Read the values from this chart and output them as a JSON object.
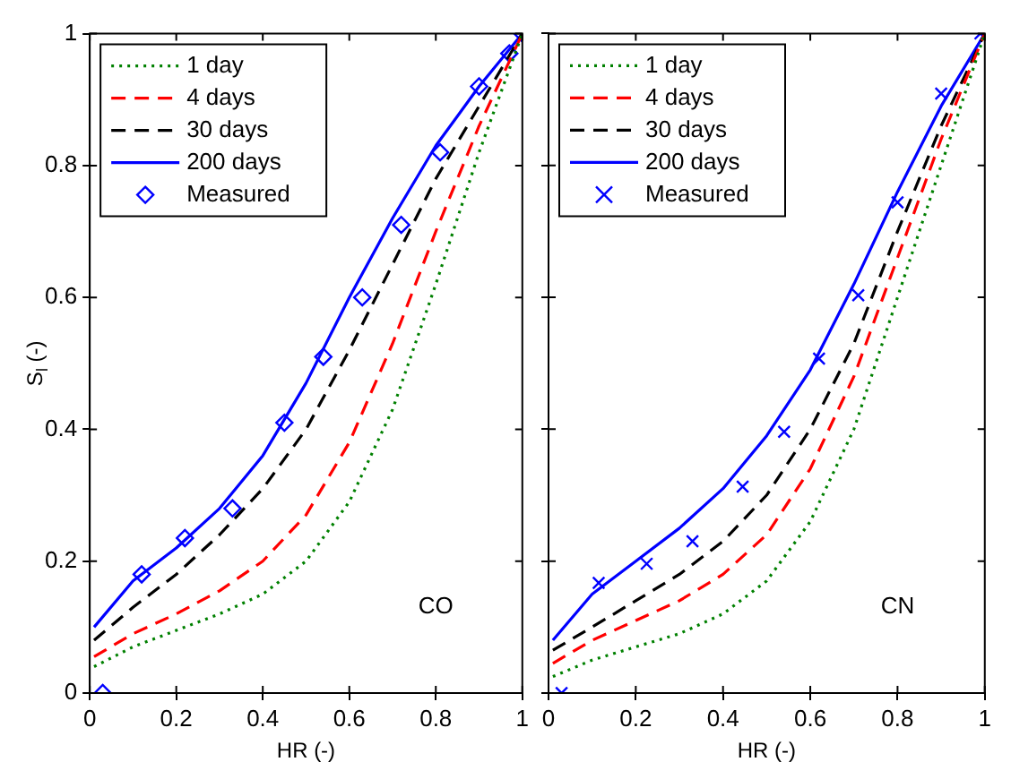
{
  "chart_data": [
    {
      "type": "line",
      "xlabel": "HR (-)",
      "ylabel": "S$_{l}$ (-)",
      "xlim": [
        0,
        1
      ],
      "ylim": [
        0,
        1
      ],
      "xticks": [
        0,
        0.2,
        0.4,
        0.6,
        0.8,
        1
      ],
      "yticks": [
        0,
        0.2,
        0.4,
        0.6,
        0.8,
        1
      ],
      "grid": false,
      "legend": "top left",
      "annotations": [
        "CO"
      ],
      "series": [
        {
          "name": "1 day",
          "type": "line",
          "color": "#008000",
          "line_style": "dotted",
          "marker": "none",
          "x": [
            0.01,
            0.1,
            0.2,
            0.3,
            0.4,
            0.5,
            0.6,
            0.7,
            0.8,
            0.9,
            1
          ],
          "values": [
            0.04,
            0.07,
            0.095,
            0.12,
            0.15,
            0.2,
            0.29,
            0.43,
            0.62,
            0.82,
            1
          ]
        },
        {
          "name": "4 days",
          "type": "line",
          "color": "#ff0000",
          "line_style": "dashed",
          "marker": "none",
          "x": [
            0.01,
            0.1,
            0.2,
            0.3,
            0.4,
            0.5,
            0.6,
            0.7,
            0.8,
            0.9,
            1
          ],
          "values": [
            0.055,
            0.09,
            0.12,
            0.155,
            0.2,
            0.27,
            0.38,
            0.53,
            0.7,
            0.86,
            1
          ]
        },
        {
          "name": "30 days",
          "type": "line",
          "color": "#000000",
          "line_style": "dashed",
          "marker": "none",
          "x": [
            0.01,
            0.1,
            0.2,
            0.3,
            0.4,
            0.5,
            0.6,
            0.7,
            0.8,
            0.9,
            1
          ],
          "values": [
            0.08,
            0.13,
            0.18,
            0.24,
            0.31,
            0.4,
            0.52,
            0.65,
            0.78,
            0.89,
            1
          ]
        },
        {
          "name": "200 days",
          "type": "line",
          "color": "#0000ff",
          "line_style": "solid",
          "marker": "none",
          "x": [
            0.01,
            0.1,
            0.2,
            0.3,
            0.4,
            0.5,
            0.6,
            0.7,
            0.8,
            0.9,
            1
          ],
          "values": [
            0.1,
            0.17,
            0.22,
            0.28,
            0.36,
            0.47,
            0.6,
            0.72,
            0.83,
            0.92,
            1
          ]
        },
        {
          "name": "Measured",
          "type": "scatter",
          "color": "#0000ff",
          "marker": "diamond",
          "x": [
            0.03,
            0.12,
            0.22,
            0.33,
            0.45,
            0.54,
            0.63,
            0.72,
            0.81,
            0.9,
            0.97,
            1
          ],
          "values": [
            0,
            0.18,
            0.235,
            0.28,
            0.41,
            0.51,
            0.6,
            0.71,
            0.82,
            0.92,
            0.97,
            1
          ]
        }
      ]
    },
    {
      "type": "line",
      "xlabel": "HR (-)",
      "xlim": [
        0,
        1
      ],
      "ylim": [
        0,
        1
      ],
      "xticks": [
        0,
        0.2,
        0.4,
        0.6,
        0.8,
        1
      ],
      "yticks": [
        0,
        0.2,
        0.4,
        0.6,
        0.8,
        1
      ],
      "tick_labels": "x",
      "grid": false,
      "legend": "top left",
      "annotations": [
        "CN"
      ],
      "series": [
        {
          "name": "1 day",
          "type": "line",
          "color": "#008000",
          "line_style": "dotted",
          "marker": "none",
          "x": [
            0.01,
            0.1,
            0.2,
            0.3,
            0.4,
            0.5,
            0.6,
            0.7,
            0.8,
            0.9,
            1
          ],
          "values": [
            0.025,
            0.05,
            0.07,
            0.09,
            0.12,
            0.17,
            0.26,
            0.4,
            0.6,
            0.8,
            1
          ]
        },
        {
          "name": "4 days",
          "type": "line",
          "color": "#ff0000",
          "line_style": "dashed",
          "marker": "none",
          "x": [
            0.01,
            0.1,
            0.2,
            0.3,
            0.4,
            0.5,
            0.6,
            0.7,
            0.8,
            0.9,
            1
          ],
          "values": [
            0.045,
            0.08,
            0.11,
            0.14,
            0.18,
            0.24,
            0.34,
            0.48,
            0.66,
            0.84,
            1
          ]
        },
        {
          "name": "30 days",
          "type": "line",
          "color": "#000000",
          "line_style": "dashed",
          "marker": "none",
          "x": [
            0.01,
            0.1,
            0.2,
            0.3,
            0.4,
            0.5,
            0.6,
            0.7,
            0.8,
            0.9,
            1
          ],
          "values": [
            0.065,
            0.1,
            0.14,
            0.18,
            0.23,
            0.3,
            0.4,
            0.53,
            0.7,
            0.86,
            1
          ]
        },
        {
          "name": "200 days",
          "type": "line",
          "color": "#0000ff",
          "line_style": "solid",
          "marker": "none",
          "x": [
            0.01,
            0.1,
            0.2,
            0.3,
            0.4,
            0.5,
            0.6,
            0.7,
            0.8,
            0.9,
            1
          ],
          "values": [
            0.08,
            0.15,
            0.2,
            0.25,
            0.31,
            0.39,
            0.49,
            0.62,
            0.76,
            0.89,
            1
          ]
        },
        {
          "name": "Measured",
          "type": "scatter",
          "color": "#0000ff",
          "marker": "cross",
          "x": [
            0.03,
            0.115,
            0.225,
            0.33,
            0.445,
            0.54,
            0.62,
            0.71,
            0.8,
            0.9,
            0.99
          ],
          "values": [
            0,
            0.167,
            0.196,
            0.23,
            0.313,
            0.396,
            0.507,
            0.603,
            0.744,
            0.909,
            1
          ]
        }
      ]
    }
  ]
}
